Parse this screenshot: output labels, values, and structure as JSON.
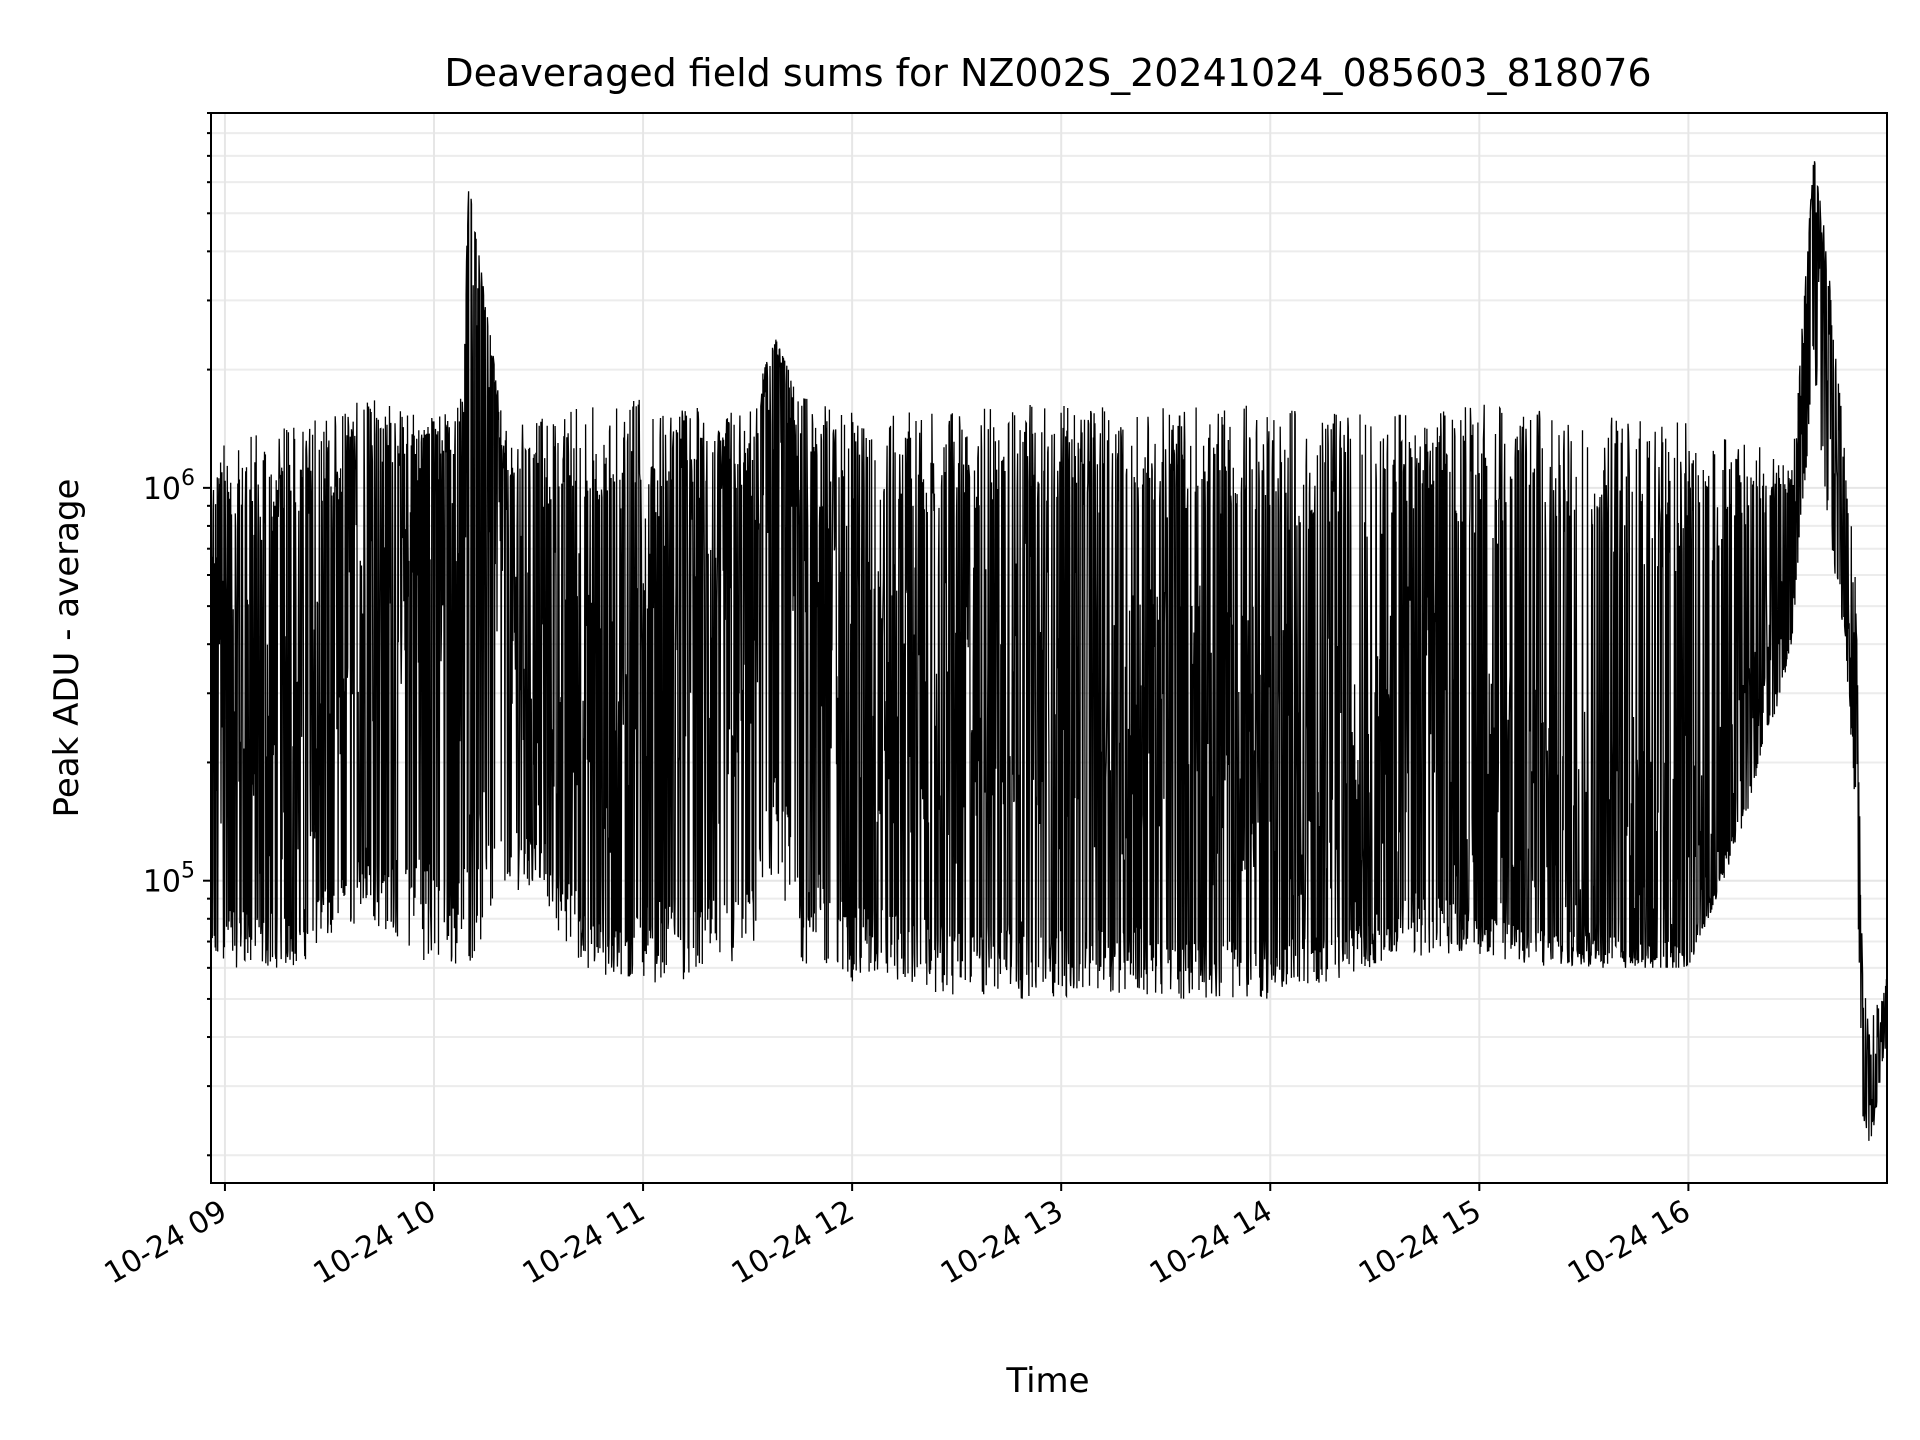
{
  "chart_data": {
    "type": "line",
    "title": "Deaveraged field sums for NZ002S_20241024_085603_818076",
    "xlabel": "Time",
    "ylabel": "Peak ADU - average",
    "x_scale": "time",
    "y_scale": "log",
    "xlim": [
      "2024-10-24 08:56",
      "2024-10-24 16:57"
    ],
    "ylim": [
      17000,
      9000000
    ],
    "x_ticks": [
      {
        "value": "2024-10-24 09:00",
        "label": "10-24 09"
      },
      {
        "value": "2024-10-24 10:00",
        "label": "10-24 10"
      },
      {
        "value": "2024-10-24 11:00",
        "label": "10-24 11"
      },
      {
        "value": "2024-10-24 12:00",
        "label": "10-24 12"
      },
      {
        "value": "2024-10-24 13:00",
        "label": "10-24 13"
      },
      {
        "value": "2024-10-24 14:00",
        "label": "10-24 14"
      },
      {
        "value": "2024-10-24 15:00",
        "label": "10-24 15"
      },
      {
        "value": "2024-10-24 16:00",
        "label": "10-24 16"
      }
    ],
    "y_ticks": [
      {
        "value": 100000,
        "base": "10",
        "exp": "5"
      },
      {
        "value": 1000000,
        "base": "10",
        "exp": "6"
      }
    ],
    "grid": true,
    "line_color": "#000000",
    "series": [
      {
        "x": [
          "2024-10-24 08:56",
          "2024-10-24 09:00",
          "2024-10-24 09:10",
          "2024-10-24 09:20",
          "2024-10-24 09:30",
          "2024-10-24 09:40",
          "2024-10-24 09:50",
          "2024-10-24 10:00",
          "2024-10-24 10:08",
          "2024-10-24 10:10",
          "2024-10-24 10:20",
          "2024-10-24 10:30",
          "2024-10-24 10:40",
          "2024-10-24 10:50",
          "2024-10-24 11:00",
          "2024-10-24 11:10",
          "2024-10-24 11:20",
          "2024-10-24 11:30",
          "2024-10-24 11:38",
          "2024-10-24 11:45",
          "2024-10-24 12:00",
          "2024-10-24 12:15",
          "2024-10-24 12:30",
          "2024-10-24 12:45",
          "2024-10-24 13:00",
          "2024-10-24 13:15",
          "2024-10-24 13:30",
          "2024-10-24 13:45",
          "2024-10-24 14:00",
          "2024-10-24 14:15",
          "2024-10-24 14:30",
          "2024-10-24 14:45",
          "2024-10-24 15:00",
          "2024-10-24 15:15",
          "2024-10-24 15:30",
          "2024-10-24 15:45",
          "2024-10-24 16:00",
          "2024-10-24 16:10",
          "2024-10-24 16:20",
          "2024-10-24 16:30",
          "2024-10-24 16:36",
          "2024-10-24 16:40",
          "2024-10-24 16:45",
          "2024-10-24 16:48",
          "2024-10-24 16:50",
          "2024-10-24 16:52",
          "2024-10-24 16:57"
        ],
        "y": [
          120000,
          350000,
          200000,
          250000,
          300000,
          500000,
          600000,
          800000,
          500000,
          6000000,
          600000,
          300000,
          400000,
          200000,
          350000,
          450000,
          300000,
          400000,
          2000000,
          800000,
          350000,
          300000,
          250000,
          320000,
          280000,
          260000,
          250000,
          230000,
          200000,
          180000,
          170000,
          350000,
          160000,
          150000,
          140000,
          120000,
          110000,
          150000,
          300000,
          600000,
          7000000,
          2000000,
          700000,
          300000,
          50000,
          30000,
          45000
        ],
        "low_envelope": [
          60000,
          60000,
          60000,
          60000,
          70000,
          80000,
          70000,
          60000,
          60000,
          60000,
          90000,
          100000,
          60000,
          55000,
          55000,
          55000,
          60000,
          60000,
          90000,
          60000,
          55000,
          55000,
          50000,
          50000,
          50000,
          52000,
          50000,
          50000,
          50000,
          55000,
          60000,
          65000,
          65000,
          60000,
          60000,
          60000,
          60000,
          100000,
          180000,
          400000,
          2000000,
          800000,
          400000,
          150000,
          25000,
          20000,
          40000
        ],
        "high_envelope": [
          1100000,
          1300000,
          1400000,
          1500000,
          1500000,
          1700000,
          1600000,
          1500000,
          1700000,
          6000000,
          1400000,
          1500000,
          1600000,
          1700000,
          1700000,
          1600000,
          1600000,
          1600000,
          2400000,
          1700000,
          1600000,
          1600000,
          1600000,
          1650000,
          1650000,
          1600000,
          1600000,
          1650000,
          1600000,
          1600000,
          1600000,
          1600000,
          1650000,
          1600000,
          1550000,
          1500000,
          1500000,
          1400000,
          1300000,
          1200000,
          7000000,
          4000000,
          1200000,
          600000,
          60000,
          45000,
          58000
        ]
      }
    ]
  }
}
